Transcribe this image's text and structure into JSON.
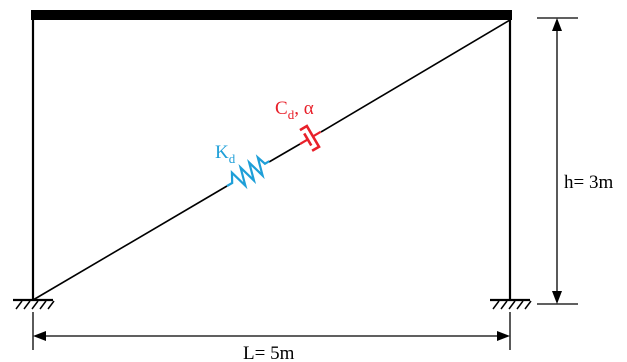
{
  "labels": {
    "spring_main": "K",
    "spring_sub": "d",
    "damper_main": "C",
    "damper_sub": "d",
    "damper_rest": ", α",
    "height": "h= 3m",
    "length": "L= 5m"
  },
  "colors": {
    "frame": "#000000",
    "spring": "#1e9fd8",
    "damper": "#e8202a"
  },
  "icons": {
    "support": "fixed-support-hatch",
    "dimension": "double-arrow"
  }
}
